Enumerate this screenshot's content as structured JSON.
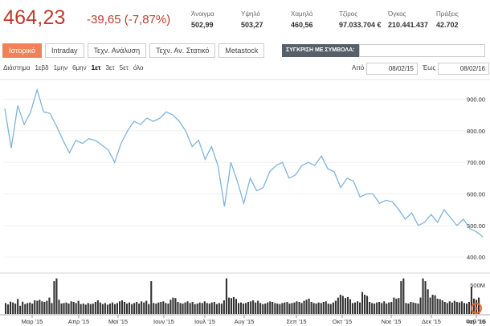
{
  "quote": {
    "price": "464,23",
    "change": "-39,65 (-7,87%)"
  },
  "stats": [
    {
      "label": "Άνοιγμα",
      "value": "502,99"
    },
    {
      "label": "Υψηλό",
      "value": "503,27"
    },
    {
      "label": "Χαμηλό",
      "value": "460,56"
    },
    {
      "label": "Τζίρος",
      "value": "97.033.704 €"
    },
    {
      "label": "Όγκος",
      "value": "210.441.437"
    },
    {
      "label": "Πράξεις",
      "value": "42.702"
    }
  ],
  "tabs": [
    {
      "label": "Ιστορικό",
      "active": true
    },
    {
      "label": "Intraday"
    },
    {
      "label": "Τεχν. Ανάλυση"
    },
    {
      "label": "Τεχν. Αν. Στατικό"
    },
    {
      "label": "Metastock"
    }
  ],
  "compare_label": "ΣΥΓΚΡΙΣΗ ΜΕ ΣΥΜΒΟΛΑ:",
  "range_label": "Διάστημα",
  "ranges": [
    "1εβδ",
    "1μην",
    "6μην",
    "1ετ",
    "3ετ",
    "5ετ",
    "όλο"
  ],
  "selected_range": "1ετ",
  "date_from_label": "Από",
  "date_from": "08/02/15",
  "date_to_label": "Έως",
  "date_to": "08/02/16",
  "colors": {
    "accent": "#f0825a",
    "negative": "#c0392b",
    "line": "#7fb4dc",
    "volume": "#333333"
  },
  "chart_data": {
    "type": "line",
    "series": [
      {
        "values": [
          870,
          745,
          880,
          820,
          860,
          930,
          860,
          855,
          815,
          770,
          730,
          770,
          760,
          775,
          770,
          755,
          740,
          700,
          760,
          800,
          830,
          820,
          840,
          830,
          840,
          860,
          850,
          830,
          800,
          750,
          770,
          710,
          750,
          690,
          560,
          700,
          640,
          570,
          650,
          610,
          620,
          670,
          690,
          700,
          650,
          660,
          690,
          700,
          690,
          720,
          680,
          670,
          620,
          650,
          640,
          590,
          600,
          600,
          570,
          580,
          575,
          550,
          520,
          540,
          500,
          510,
          535,
          510,
          550,
          525,
          500,
          520,
          490,
          480,
          464
        ]
      }
    ],
    "ylim": [
      380,
      960
    ],
    "y_ticks": [
      "900.00",
      "800.00",
      "700.00",
      "600.00",
      "500.00",
      "400.00"
    ],
    "x_ticks": [
      "Μαρ '15",
      "Απρ '15",
      "Μαϊ '15",
      "Ιουν '15",
      "Ιουλ '15",
      "Αυγ '15",
      "Σεπ '15",
      "Οκτ '15",
      "Νοε '15",
      "Δεκ '15",
      "Ιαν '16",
      "Φεβ '16"
    ],
    "volume_label": "500M",
    "volume": [
      40,
      35,
      45,
      42,
      38,
      55,
      30,
      45,
      36,
      40,
      42,
      38,
      50,
      48,
      52,
      46,
      44,
      48,
      60,
      40,
      120,
      130,
      52,
      38,
      40,
      42,
      38,
      46,
      44,
      40,
      48,
      36,
      38,
      34,
      40,
      36,
      38,
      44,
      50,
      42,
      36,
      40,
      34,
      38,
      42,
      36,
      40,
      46,
      50,
      44,
      38,
      42,
      36,
      40,
      44,
      38,
      46,
      42,
      48,
      36,
      120,
      40,
      38,
      42,
      44,
      46,
      40,
      38,
      52,
      60,
      58,
      44,
      40,
      38,
      42,
      46,
      40,
      44,
      36,
      38,
      42,
      40,
      46,
      40,
      38,
      42,
      44,
      36,
      40,
      38,
      50,
      130,
      60,
      58,
      62,
      55,
      40,
      42,
      38,
      40,
      44,
      46,
      50,
      42,
      48,
      40,
      36,
      38,
      42,
      46,
      44,
      40,
      38,
      36,
      40,
      42,
      44,
      38,
      40,
      42,
      46,
      44,
      40,
      48,
      52,
      56,
      44,
      40,
      38,
      42,
      40,
      44,
      46,
      38,
      36,
      42,
      48,
      60,
      70,
      66,
      58,
      62,
      54,
      40,
      42,
      46,
      42,
      80,
      70,
      66,
      44,
      40,
      38,
      42,
      44,
      40,
      46,
      38,
      42,
      44,
      60,
      56,
      58,
      120,
      130,
      40,
      38,
      44,
      42,
      40,
      38,
      60,
      130,
      120,
      90,
      60,
      70,
      68,
      56,
      54,
      50,
      44,
      40,
      46,
      42,
      48,
      44,
      42,
      46,
      40,
      38,
      44,
      100,
      56,
      52,
      60
    ]
  }
}
